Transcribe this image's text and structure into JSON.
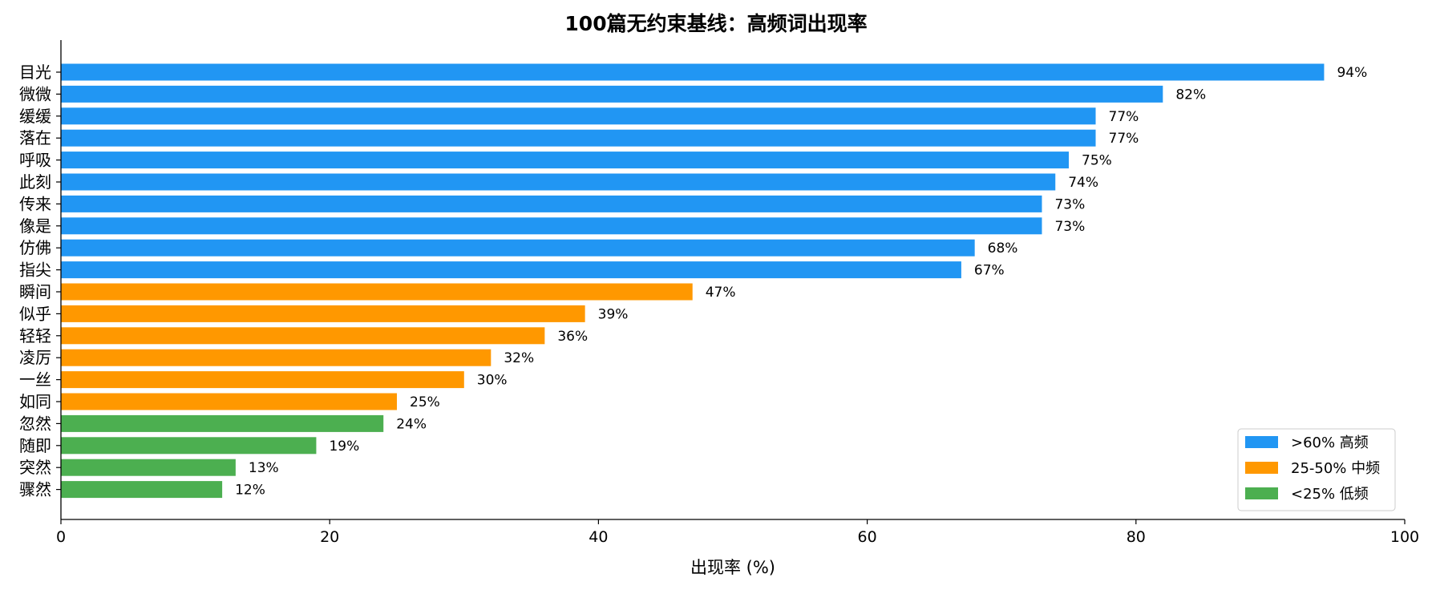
{
  "chart_data": {
    "type": "bar",
    "orientation": "horizontal",
    "title": "100篇无约束基线：高频词出现率",
    "xlabel": "出现率 (%)",
    "ylabel": "",
    "xlim": [
      0,
      100
    ],
    "xticks": [
      0,
      20,
      40,
      60,
      80,
      100
    ],
    "grid": false,
    "legend_position": "lower-right",
    "categories": [
      "目光",
      "微微",
      "缓缓",
      "落在",
      "呼吸",
      "此刻",
      "传来",
      "像是",
      "仿佛",
      "指尖",
      "瞬间",
      "似乎",
      "轻轻",
      "凌厉",
      "一丝",
      "如同",
      "忽然",
      "随即",
      "突然",
      "骤然"
    ],
    "values": [
      94,
      82,
      77,
      77,
      75,
      74,
      73,
      73,
      68,
      67,
      47,
      39,
      36,
      32,
      30,
      25,
      24,
      19,
      13,
      12
    ],
    "value_labels": [
      "94%",
      "82%",
      "77%",
      "77%",
      "75%",
      "74%",
      "73%",
      "73%",
      "68%",
      "67%",
      "47%",
      "39%",
      "36%",
      "32%",
      "30%",
      "25%",
      "24%",
      "19%",
      "13%",
      "12%"
    ],
    "groups": [
      "high",
      "high",
      "high",
      "high",
      "high",
      "high",
      "high",
      "high",
      "high",
      "high",
      "mid",
      "mid",
      "mid",
      "mid",
      "mid",
      "mid",
      "low",
      "low",
      "low",
      "low"
    ],
    "legend": [
      {
        "key": "high",
        "label": ">60% 高频",
        "color": "#2196F3"
      },
      {
        "key": "mid",
        "label": "25-50% 中频",
        "color": "#FF9800"
      },
      {
        "key": "low",
        "label": "<25% 低频",
        "color": "#4CAF50"
      }
    ]
  }
}
